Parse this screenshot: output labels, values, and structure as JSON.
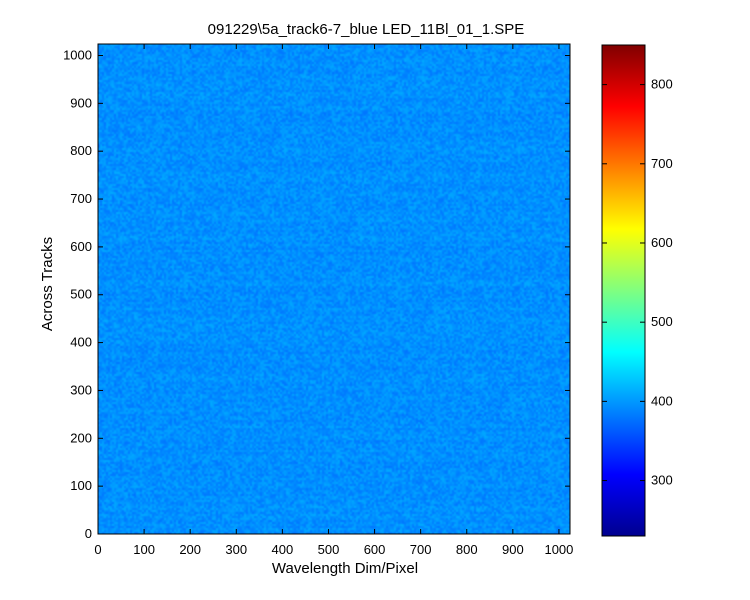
{
  "chart_data": {
    "type": "heatmap",
    "title": "091229\\5a_track6-7_blue LED_11Bl_01_1.SPE",
    "xlabel": "Wavelength Dim/Pixel",
    "ylabel": "Across Tracks",
    "xlim": [
      0,
      1024
    ],
    "ylim": [
      0,
      1024
    ],
    "xticks": [
      0,
      100,
      200,
      300,
      400,
      500,
      600,
      700,
      800,
      900,
      1000
    ],
    "yticks": [
      0,
      100,
      200,
      300,
      400,
      500,
      600,
      700,
      800,
      900,
      1000
    ],
    "colormap": "jet",
    "clim": [
      230,
      850
    ],
    "colorbar_ticks": [
      300,
      400,
      500,
      600,
      700,
      800
    ],
    "field": {
      "typical_value": 395,
      "noise_range": [
        380,
        410
      ],
      "description": "uniform noisy field around ~395 counts across the sensor"
    },
    "grid": false
  }
}
